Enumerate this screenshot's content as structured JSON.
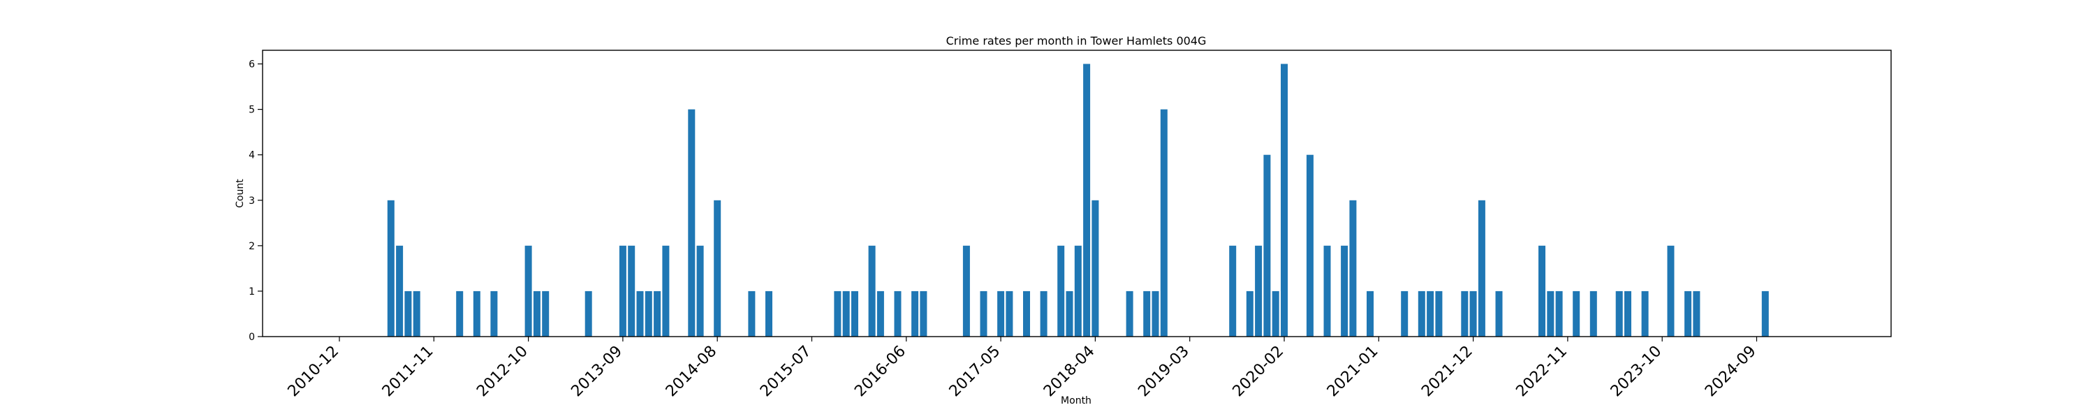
{
  "chart_data": {
    "type": "bar",
    "title": "Crime rates per month in Tower Hamlets 004G",
    "xlabel": "Month",
    "ylabel": "Count",
    "ylim": [
      0,
      6.3
    ],
    "yticks": [
      0,
      1,
      2,
      3,
      4,
      5,
      6
    ],
    "xticks": [
      "2010-12",
      "2011-11",
      "2012-10",
      "2013-09",
      "2014-08",
      "2015-07",
      "2016-06",
      "2017-05",
      "2018-04",
      "2019-03",
      "2020-02",
      "2021-01",
      "2021-12",
      "2022-11",
      "2023-10",
      "2024-09"
    ],
    "grid": false,
    "bar_color": "#1f77b4",
    "categories": [
      "2011-06",
      "2011-07",
      "2011-08",
      "2011-09",
      "2012-02",
      "2012-04",
      "2012-06",
      "2012-10",
      "2012-11",
      "2012-12",
      "2013-05",
      "2013-09",
      "2013-10",
      "2013-11",
      "2013-12",
      "2014-01",
      "2014-02",
      "2014-05",
      "2014-06",
      "2014-08",
      "2014-12",
      "2015-02",
      "2015-10",
      "2015-11",
      "2015-12",
      "2016-02",
      "2016-03",
      "2016-05",
      "2016-07",
      "2016-08",
      "2017-01",
      "2017-03",
      "2017-05",
      "2017-06",
      "2017-08",
      "2017-10",
      "2017-12",
      "2018-01",
      "2018-02",
      "2018-03",
      "2018-04",
      "2018-08",
      "2018-10",
      "2018-11",
      "2018-12",
      "2019-08",
      "2019-10",
      "2019-11",
      "2019-12",
      "2020-01",
      "2020-02",
      "2020-05",
      "2020-07",
      "2020-09",
      "2020-10",
      "2020-12",
      "2021-04",
      "2021-06",
      "2021-07",
      "2021-08",
      "2021-11",
      "2021-12",
      "2022-01",
      "2022-03",
      "2022-08",
      "2022-09",
      "2022-10",
      "2022-12",
      "2023-02",
      "2023-05",
      "2023-06",
      "2023-08",
      "2023-11",
      "2024-01",
      "2024-02",
      "2024-10"
    ],
    "values": [
      3,
      2,
      1,
      1,
      1,
      1,
      1,
      2,
      1,
      1,
      1,
      2,
      2,
      1,
      1,
      1,
      2,
      5,
      2,
      3,
      1,
      1,
      1,
      1,
      1,
      2,
      1,
      1,
      1,
      1,
      2,
      1,
      1,
      1,
      1,
      1,
      2,
      1,
      2,
      6,
      3,
      1,
      1,
      1,
      5,
      2,
      1,
      2,
      4,
      1,
      6,
      4,
      2,
      2,
      3,
      1,
      1,
      1,
      1,
      1,
      1,
      1,
      3,
      1,
      2,
      1,
      1,
      1,
      1,
      1,
      1,
      1,
      2,
      1,
      1,
      1
    ]
  }
}
